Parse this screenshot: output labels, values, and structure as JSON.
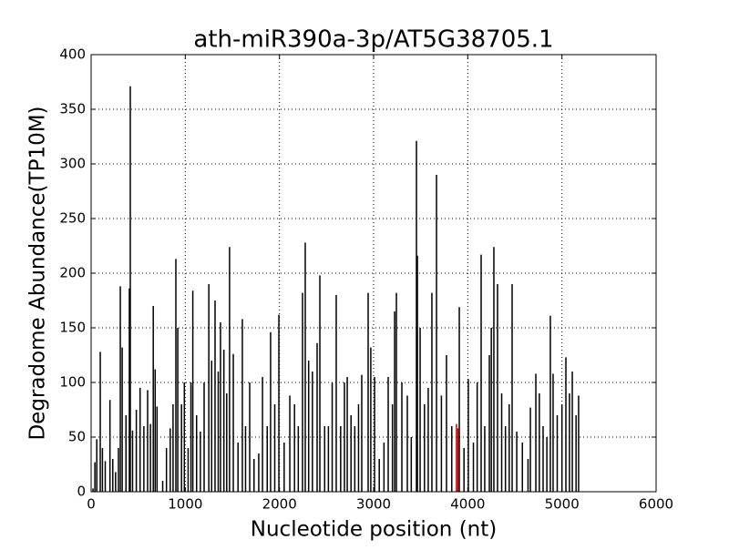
{
  "chart_data": {
    "type": "stem",
    "title": "ath-miR390a-3p/AT5G38705.1",
    "x_label": "Nucleotide position (nt)",
    "y_label": "Degradome Abundance(TP10M)",
    "xlim": [
      0,
      6000
    ],
    "xticks": [
      0,
      1000,
      2000,
      3000,
      4000,
      5000,
      6000
    ],
    "ylim": [
      0,
      400
    ],
    "yticks": [
      0,
      50,
      100,
      150,
      200,
      250,
      300,
      350,
      400
    ],
    "grid": true,
    "series": [
      {
        "color": "#000000",
        "x": [
          20,
          40,
          60,
          97,
          120,
          150,
          200,
          230,
          260,
          290,
          310,
          330,
          370,
          406,
          416,
          440,
          480,
          520,
          560,
          600,
          630,
          660,
          680,
          700,
          760,
          800,
          840,
          870,
          900,
          920,
          960,
          990,
          1030,
          1060,
          1080,
          1120,
          1160,
          1200,
          1250,
          1280,
          1316,
          1350,
          1374,
          1410,
          1440,
          1470,
          1510,
          1560,
          1606,
          1640,
          1684,
          1730,
          1780,
          1820,
          1870,
          1906,
          1950,
          1994,
          2050,
          2110,
          2160,
          2200,
          2245,
          2274,
          2310,
          2350,
          2400,
          2429,
          2480,
          2520,
          2560,
          2603,
          2650,
          2690,
          2720,
          2760,
          2800,
          2840,
          2874,
          2942,
          2970,
          3010,
          3060,
          3110,
          3155,
          3200,
          3223,
          3242,
          3300,
          3358,
          3400,
          3455,
          3465,
          3494,
          3540,
          3580,
          3619,
          3668,
          3720,
          3774,
          3830,
          3910,
          3960,
          4006,
          4060,
          4100,
          4142,
          4180,
          4229,
          4250,
          4277,
          4316,
          4360,
          4400,
          4440,
          4471,
          4520,
          4580,
          4640,
          4665,
          4723,
          4760,
          4800,
          4840,
          4877,
          4906,
          4950,
          5000,
          5042,
          5080,
          5110,
          5150,
          5177
        ],
        "values": [
          3,
          27,
          48,
          128,
          40,
          28,
          84,
          30,
          18,
          40,
          188,
          132,
          70,
          186,
          371,
          56,
          75,
          95,
          60,
          93,
          62,
          170,
          112,
          78,
          10,
          40,
          58,
          80,
          213,
          150,
          80,
          100,
          40,
          100,
          184,
          70,
          55,
          100,
          190,
          120,
          175,
          110,
          155,
          130,
          90,
          224,
          126,
          45,
          158,
          60,
          100,
          30,
          35,
          105,
          60,
          146,
          80,
          162,
          45,
          88,
          80,
          60,
          182,
          228,
          120,
          110,
          136,
          198,
          60,
          60,
          100,
          180,
          60,
          100,
          105,
          70,
          60,
          80,
          107,
          182,
          132,
          105,
          30,
          45,
          105,
          80,
          165,
          182,
          100,
          88,
          50,
          321,
          216,
          150,
          80,
          95,
          182,
          290,
          88,
          125,
          60,
          169,
          40,
          103,
          45,
          100,
          217,
          60,
          125,
          150,
          224,
          190,
          90,
          60,
          80,
          190,
          55,
          45,
          30,
          77,
          108,
          90,
          60,
          50,
          161,
          108,
          70,
          80,
          123,
          90,
          110,
          70,
          88
        ]
      },
      {
        "color": "#cc0000",
        "x": [
          3880,
          3895
        ],
        "values": [
          62,
          58
        ]
      }
    ]
  }
}
